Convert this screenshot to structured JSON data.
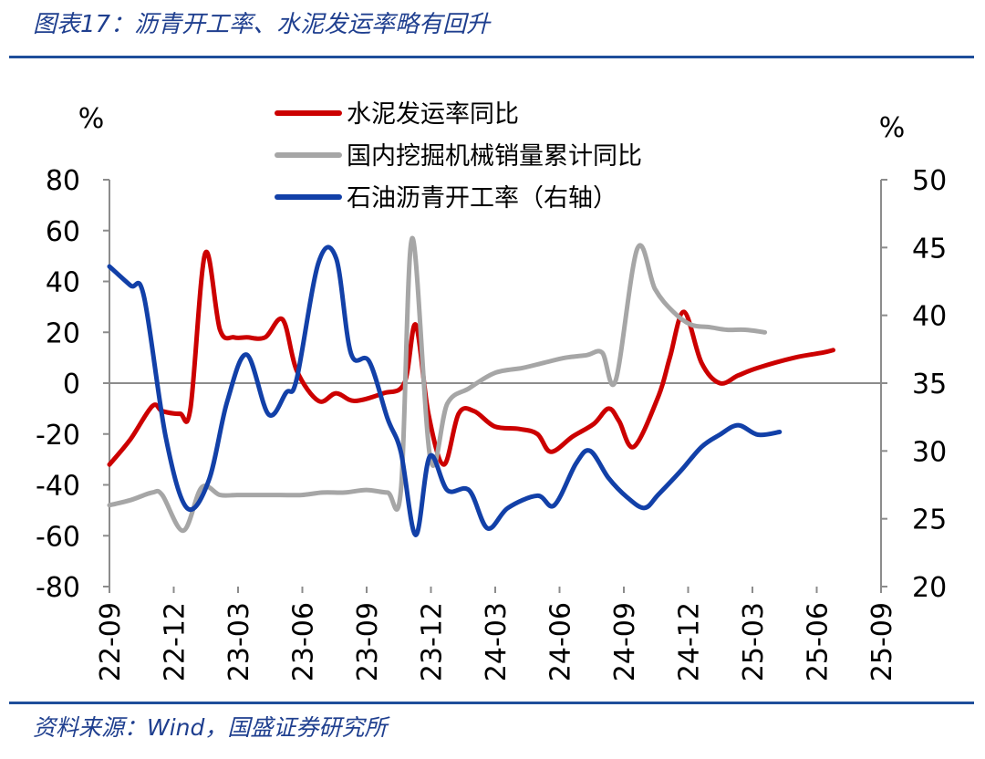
{
  "figure": {
    "title": "图表17：沥青开工率、水泥发运率略有回升",
    "source": "资料来源：Wind，国盛证券研究所"
  },
  "chart_data": {
    "type": "line",
    "left_axis": {
      "unit": "%",
      "ylim": [
        -80,
        80
      ],
      "ticks": [
        80,
        60,
        40,
        20,
        0,
        -20,
        -40,
        -60,
        -80
      ]
    },
    "right_axis": {
      "unit": "%",
      "ylim": [
        20,
        50
      ],
      "ticks": [
        50,
        45,
        40,
        35,
        30,
        25,
        20
      ]
    },
    "x_range": [
      "2022-09",
      "2025-09"
    ],
    "x_ticks": [
      "22-09",
      "22-12",
      "23-03",
      "23-06",
      "23-09",
      "23-12",
      "24-03",
      "24-06",
      "24-09",
      "24-12",
      "25-03",
      "25-06",
      "25-09"
    ],
    "grid": false,
    "legend_position": "top-center",
    "series": [
      {
        "name": "水泥发运率同比",
        "axis": "left",
        "color": "#cc0000",
        "points": [
          [
            "2022-09-01",
            -32
          ],
          [
            "2022-10-01",
            -22
          ],
          [
            "2022-11-01",
            -9
          ],
          [
            "2022-11-15",
            -11
          ],
          [
            "2022-12-10",
            -12
          ],
          [
            "2022-12-25",
            -10
          ],
          [
            "2023-01-15",
            51
          ],
          [
            "2023-02-05",
            21
          ],
          [
            "2023-02-25",
            18
          ],
          [
            "2023-03-15",
            18
          ],
          [
            "2023-04-10",
            18
          ],
          [
            "2023-05-05",
            25
          ],
          [
            "2023-05-25",
            5
          ],
          [
            "2023-06-25",
            -7
          ],
          [
            "2023-07-20",
            -4
          ],
          [
            "2023-08-15",
            -7
          ],
          [
            "2023-09-25",
            -4
          ],
          [
            "2023-10-25",
            0
          ],
          [
            "2023-11-10",
            23
          ],
          [
            "2023-11-28",
            -12
          ],
          [
            "2023-12-20",
            -32
          ],
          [
            "2024-01-10",
            -12
          ],
          [
            "2024-02-01",
            -11
          ],
          [
            "2024-03-01",
            -17
          ],
          [
            "2024-04-05",
            -18
          ],
          [
            "2024-05-01",
            -20
          ],
          [
            "2024-05-20",
            -27
          ],
          [
            "2024-06-20",
            -21
          ],
          [
            "2024-07-20",
            -16
          ],
          [
            "2024-08-10",
            -10
          ],
          [
            "2024-08-25",
            -15
          ],
          [
            "2024-09-15",
            -25
          ],
          [
            "2024-10-20",
            -5
          ],
          [
            "2024-11-05",
            10
          ],
          [
            "2024-11-25",
            28
          ],
          [
            "2024-12-20",
            8
          ],
          [
            "2025-01-15",
            0
          ],
          [
            "2025-02-10",
            3
          ],
          [
            "2025-03-10",
            6
          ],
          [
            "2025-05-01",
            10
          ],
          [
            "2025-06-10",
            12
          ],
          [
            "2025-06-25",
            13
          ]
        ]
      },
      {
        "name": "国内挖掘机械销量累计同比",
        "axis": "left",
        "color": "#a6a6a6",
        "points": [
          [
            "2022-09-01",
            -48
          ],
          [
            "2022-10-01",
            -46
          ],
          [
            "2022-11-01",
            -43
          ],
          [
            "2022-11-15",
            -44
          ],
          [
            "2022-12-15",
            -58
          ],
          [
            "2023-01-10",
            -41
          ],
          [
            "2023-02-05",
            -44
          ],
          [
            "2023-03-01",
            -44
          ],
          [
            "2023-04-01",
            -44
          ],
          [
            "2023-05-01",
            -44
          ],
          [
            "2023-06-01",
            -44
          ],
          [
            "2023-07-01",
            -43
          ],
          [
            "2023-08-01",
            -43
          ],
          [
            "2023-09-01",
            -42
          ],
          [
            "2023-10-01",
            -43
          ],
          [
            "2023-10-20",
            -42
          ],
          [
            "2023-11-05",
            57
          ],
          [
            "2023-12-01",
            -30
          ],
          [
            "2023-12-25",
            -8
          ],
          [
            "2024-01-25",
            -2
          ],
          [
            "2024-03-01",
            4
          ],
          [
            "2024-04-10",
            6
          ],
          [
            "2024-05-10",
            8
          ],
          [
            "2024-06-10",
            10
          ],
          [
            "2024-07-10",
            11
          ],
          [
            "2024-08-01",
            12
          ],
          [
            "2024-08-20",
            1
          ],
          [
            "2024-09-20",
            53
          ],
          [
            "2024-10-15",
            37
          ],
          [
            "2024-11-10",
            28
          ],
          [
            "2024-12-05",
            23
          ],
          [
            "2025-01-01",
            22
          ],
          [
            "2025-01-25",
            21
          ],
          [
            "2025-02-20",
            21
          ],
          [
            "2025-03-20",
            20
          ]
        ]
      },
      {
        "name": "石油沥青开工率（右轴）",
        "axis": "right",
        "color": "#1240a8",
        "points": [
          [
            "2022-09-01",
            43.6
          ],
          [
            "2022-10-01",
            42.2
          ],
          [
            "2022-10-20",
            41.4
          ],
          [
            "2022-11-20",
            31.0
          ],
          [
            "2022-12-20",
            25.8
          ],
          [
            "2023-01-20",
            27.8
          ],
          [
            "2023-02-15",
            33.6
          ],
          [
            "2023-03-15",
            37.1
          ],
          [
            "2023-04-15",
            32.7
          ],
          [
            "2023-05-10",
            34.3
          ],
          [
            "2023-05-25",
            35.3
          ],
          [
            "2023-06-25",
            43.9
          ],
          [
            "2023-07-20",
            44.2
          ],
          [
            "2023-08-10",
            37.2
          ],
          [
            "2023-09-05",
            36.6
          ],
          [
            "2023-10-01",
            32.4
          ],
          [
            "2023-10-20",
            29.9
          ],
          [
            "2023-11-10",
            23.8
          ],
          [
            "2023-11-30",
            29.6
          ],
          [
            "2023-12-25",
            27.1
          ],
          [
            "2024-01-25",
            27.1
          ],
          [
            "2024-02-20",
            24.3
          ],
          [
            "2024-03-20",
            25.8
          ],
          [
            "2024-05-01",
            26.7
          ],
          [
            "2024-05-25",
            26.0
          ],
          [
            "2024-06-25",
            29.1
          ],
          [
            "2024-07-15",
            30.0
          ],
          [
            "2024-08-10",
            28.0
          ],
          [
            "2024-09-05",
            26.6
          ],
          [
            "2024-09-30",
            25.8
          ],
          [
            "2024-10-20",
            26.8
          ],
          [
            "2024-11-20",
            28.5
          ],
          [
            "2024-12-20",
            30.3
          ],
          [
            "2025-01-15",
            31.2
          ],
          [
            "2025-02-10",
            31.9
          ],
          [
            "2025-03-10",
            31.2
          ],
          [
            "2025-04-10",
            31.4
          ]
        ]
      }
    ]
  }
}
